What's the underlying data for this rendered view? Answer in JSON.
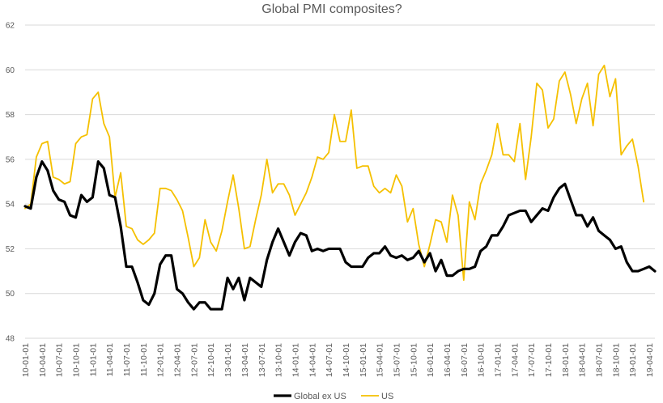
{
  "chart_data": {
    "type": "line",
    "title": "Global PMI composites?",
    "xlabel": "",
    "ylabel": "",
    "ylim": [
      48,
      62
    ],
    "yticks": [
      48,
      50,
      52,
      54,
      56,
      58,
      60,
      62
    ],
    "grid": true,
    "legend_position": "bottom",
    "tick_labels": [
      "10-01-01",
      "10-04-01",
      "10-07-01",
      "10-10-01",
      "11-01-01",
      "11-04-01",
      "11-07-01",
      "11-10-01",
      "12-01-01",
      "12-04-01",
      "12-07-01",
      "12-10-01",
      "13-01-01",
      "13-04-01",
      "13-07-01",
      "13-10-01",
      "14-01-01",
      "14-04-01",
      "14-07-01",
      "14-10-01",
      "15-01-01",
      "15-04-01",
      "15-07-01",
      "15-10-01",
      "16-01-01",
      "16-04-01",
      "16-07-01",
      "16-10-01",
      "17-01-01",
      "17-04-01",
      "17-07-01",
      "17-10-01",
      "18-01-01",
      "18-04-01",
      "18-07-01",
      "18-10-01",
      "19-01-01",
      "19-04-01"
    ],
    "x_start": "2010-01",
    "x_end": "2019-04",
    "series": [
      {
        "name": "Global ex US",
        "color": "#000000",
        "values": [
          53.9,
          53.8,
          55.2,
          55.9,
          55.5,
          54.6,
          54.2,
          54.1,
          53.5,
          53.4,
          54.4,
          54.1,
          54.3,
          55.9,
          55.6,
          54.4,
          54.3,
          53.0,
          51.2,
          51.2,
          50.5,
          49.7,
          49.5,
          50.0,
          51.3,
          51.7,
          51.7,
          50.2,
          50.0,
          49.6,
          49.3,
          49.6,
          49.6,
          49.3,
          49.3,
          49.3,
          50.7,
          50.2,
          50.7,
          49.7,
          50.7,
          50.5,
          50.3,
          51.5,
          52.3,
          52.9,
          52.3,
          51.7,
          52.3,
          52.7,
          52.6,
          51.9,
          52.0,
          51.9,
          52.0,
          52.0,
          52.0,
          51.4,
          51.2,
          51.2,
          51.2,
          51.6,
          51.8,
          51.8,
          52.1,
          51.7,
          51.6,
          51.7,
          51.5,
          51.6,
          51.9,
          51.4,
          51.8,
          51.0,
          51.5,
          50.8,
          50.8,
          51.0,
          51.1,
          51.1,
          51.2,
          51.9,
          52.1,
          52.6,
          52.6,
          53.0,
          53.5,
          53.6,
          53.7,
          53.7,
          53.2,
          53.5,
          53.8,
          53.7,
          54.3,
          54.7,
          54.9,
          54.2,
          53.5,
          53.5,
          53.0,
          53.4,
          52.8,
          52.6,
          52.4,
          52.0,
          52.1,
          51.4,
          51.0,
          51.0,
          51.1,
          51.2,
          51.0
        ]
      },
      {
        "name": "US",
        "color": "#F5C000",
        "values": [
          53.8,
          54.0,
          56.1,
          56.7,
          56.8,
          55.2,
          55.1,
          54.9,
          55.0,
          56.7,
          57.0,
          57.1,
          58.7,
          59.0,
          57.6,
          57.0,
          54.3,
          55.4,
          53.0,
          52.9,
          52.4,
          52.2,
          52.4,
          52.7,
          54.7,
          54.7,
          54.6,
          54.2,
          53.7,
          52.5,
          51.2,
          51.6,
          53.3,
          52.3,
          51.9,
          52.8,
          54.1,
          55.3,
          53.8,
          52.0,
          52.1,
          53.3,
          54.4,
          56.0,
          54.5,
          54.9,
          54.9,
          54.4,
          53.5,
          54.0,
          54.5,
          55.2,
          56.1,
          56.0,
          56.3,
          58.0,
          56.8,
          56.8,
          58.2,
          55.6,
          55.7,
          55.7,
          54.8,
          54.5,
          54.7,
          54.5,
          55.3,
          54.8,
          53.2,
          53.8,
          52.2,
          51.2,
          52.2,
          53.3,
          53.2,
          52.3,
          54.4,
          53.5,
          50.6,
          54.1,
          53.3,
          54.9,
          55.5,
          56.2,
          57.6,
          56.2,
          56.2,
          55.9,
          57.6,
          55.1,
          57.0,
          59.4,
          59.1,
          57.4,
          57.8,
          59.5,
          59.9,
          58.9,
          57.6,
          58.7,
          59.4,
          57.5,
          59.8,
          60.2,
          58.8,
          59.6,
          56.2,
          56.6,
          56.9,
          55.7,
          54.1
        ]
      }
    ]
  }
}
